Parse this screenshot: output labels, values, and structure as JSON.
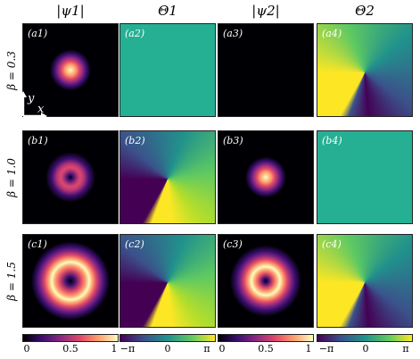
{
  "headers": {
    "col1": "|ψ1|",
    "col2": "Θ1",
    "col3": "|ψ2|",
    "col4": "Θ2"
  },
  "rows": [
    {
      "label": "β = 0.3",
      "tags": [
        "(a1)",
        "(a2)",
        "(a3)",
        "(a4)"
      ]
    },
    {
      "label": "β = 1.0",
      "tags": [
        "(b1)",
        "(b2)",
        "(b3)",
        "(b4)"
      ]
    },
    {
      "label": "β = 1.5",
      "tags": [
        "(c1)",
        "(c2)",
        "(c3)",
        "(c4)"
      ]
    }
  ],
  "axes_icon": {
    "y": "y",
    "x": "x"
  },
  "colorbars": {
    "amplitude_ticks": [
      "0",
      "0.5",
      "1"
    ],
    "phase_ticks": [
      "−π",
      "0",
      "π"
    ]
  },
  "panel_content": {
    "amplitude": [
      [
        "bright spot",
        "no signal"
      ],
      [
        "ring",
        "bright spot"
      ],
      [
        "ring",
        "ring"
      ]
    ],
    "phase": [
      [
        "uniform",
        "vortex"
      ],
      [
        "vortex",
        "uniform"
      ],
      [
        "vortex",
        "vortex"
      ]
    ]
  },
  "colors": {
    "amplitude_map": [
      "#000004",
      "#3b0f70",
      "#8c2981",
      "#de4968",
      "#fe9f6d",
      "#fcfdbf"
    ],
    "phase_map": [
      "#440154",
      "#3b528b",
      "#21918c",
      "#5ec962",
      "#fde725"
    ]
  }
}
